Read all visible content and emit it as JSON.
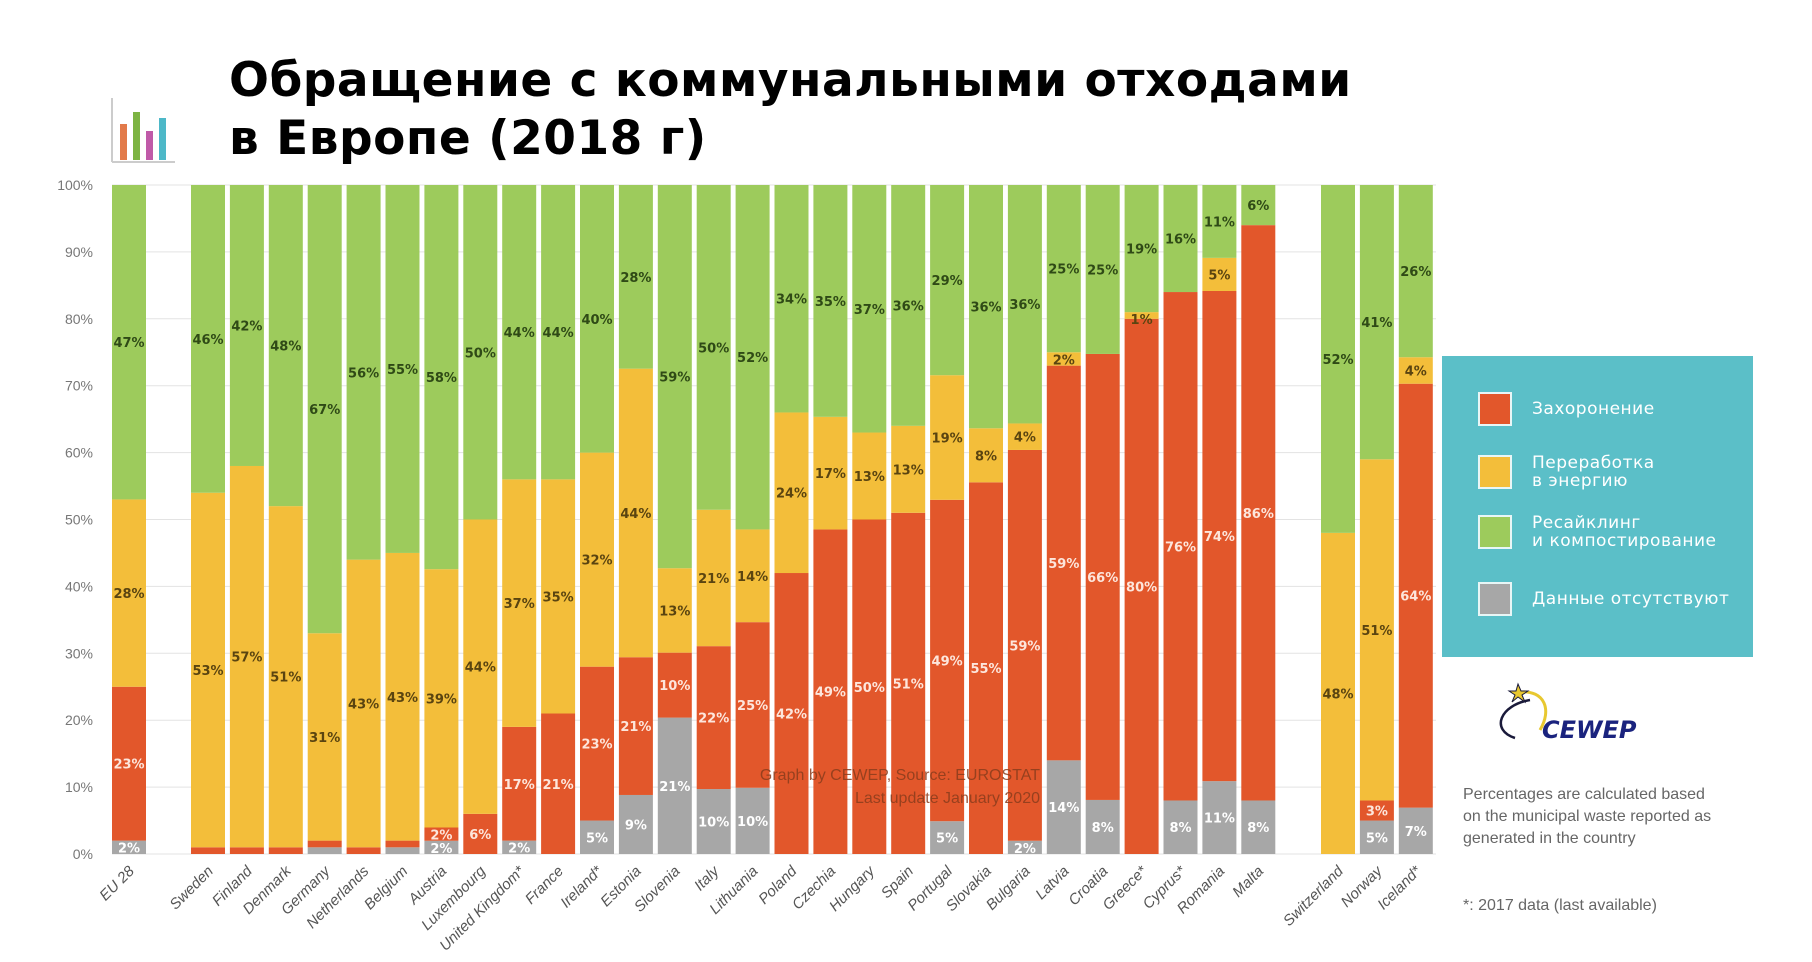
{
  "title_line1": "Обращение с коммунальными отходами",
  "title_line2": "в Европе (2018 г)",
  "credit_line1": "Graph by CEWEP, Source: EUROSTAT",
  "credit_line2": "Last update January 2020",
  "note": "Percentages are calculated based on the municipal waste reported as generated in the country",
  "footnote": "*: 2017 data (last available)",
  "logo_text": "CEWEP",
  "colors": {
    "no_data": "#a7a7a7",
    "landfill": "#e2572b",
    "energy": "#f3be3a",
    "recycling": "#9dcb5c",
    "legend_bg": "#5bbfc8"
  },
  "legend": [
    {
      "label": "Захоронение",
      "color": "#e2572b"
    },
    {
      "label": "Переработка\nв энергию",
      "color": "#f3be3a"
    },
    {
      "label": "Ресайклинг\nи компостирование",
      "color": "#9dcb5c"
    },
    {
      "label": "Данные отсутствуют",
      "color": "#a7a7a7"
    }
  ],
  "chart_data": {
    "type": "bar",
    "stacked": true,
    "ylim": [
      0,
      100
    ],
    "yticks": [
      "0%",
      "10%",
      "20%",
      "30%",
      "40%",
      "50%",
      "60%",
      "70%",
      "80%",
      "90%",
      "100%"
    ],
    "grid": true,
    "legend_position": "right",
    "groups": [
      [
        "EU 28"
      ],
      [
        "Sweden",
        "Finland",
        "Denmark",
        "Germany",
        "Netherlands",
        "Belgium",
        "Austria",
        "Luxembourg",
        "United Kingdom*",
        "France",
        "Ireland*",
        "Estonia",
        "Slovenia",
        "Italy",
        "Lithuania",
        "Poland",
        "Czechia",
        "Hungary",
        "Spain",
        "Portugal",
        "Slovakia",
        "Bulgaria",
        "Latvia",
        "Croatia",
        "Greece*",
        "Cyprus*",
        "Romania",
        "Malta"
      ],
      [
        "Switzerland",
        "Norway",
        "Iceland*"
      ]
    ],
    "categories": [
      "EU 28",
      "Sweden",
      "Finland",
      "Denmark",
      "Germany",
      "Netherlands",
      "Belgium",
      "Austria",
      "Luxembourg",
      "United Kingdom*",
      "France",
      "Ireland*",
      "Estonia",
      "Slovenia",
      "Italy",
      "Lithuania",
      "Poland",
      "Czechia",
      "Hungary",
      "Spain",
      "Portugal",
      "Slovakia",
      "Bulgaria",
      "Latvia",
      "Croatia",
      "Greece*",
      "Cyprus*",
      "Romania",
      "Malta",
      "Switzerland",
      "Norway",
      "Iceland*"
    ],
    "series": [
      {
        "name": "Данные отсутствуют",
        "key": "no_data",
        "values": [
          2,
          0,
          0,
          0,
          1,
          0,
          1,
          2,
          0,
          2,
          0,
          5,
          9,
          21,
          10,
          10,
          0,
          0,
          0,
          0,
          5,
          0,
          2,
          14,
          8,
          0,
          8,
          11,
          8,
          0,
          5,
          7
        ],
        "labels": [
          "2%",
          "",
          "",
          "",
          "",
          "",
          "",
          "2%",
          "",
          "2%",
          "",
          "5%",
          "9%",
          "21%",
          "10%",
          "10%",
          "",
          "",
          "",
          "",
          "5%",
          "",
          "2%",
          "14%",
          "8%",
          "",
          "8%",
          "11%",
          "8%",
          "",
          "5%",
          "7%"
        ]
      },
      {
        "name": "Захоронение",
        "key": "landfill",
        "values": [
          23,
          1,
          1,
          1,
          1,
          1,
          1,
          2,
          6,
          17,
          21,
          23,
          21,
          10,
          22,
          25,
          42,
          49,
          50,
          51,
          49,
          55,
          59,
          59,
          66,
          80,
          76,
          74,
          86,
          0,
          3,
          64
        ],
        "labels": [
          "23%",
          "",
          "",
          "",
          "",
          "",
          "",
          "2%",
          "6%",
          "17%",
          "21%",
          "23%",
          "21%",
          "10%",
          "22%",
          "25%",
          "42%",
          "49%",
          "50%",
          "51%",
          "49%",
          "55%",
          "59%",
          "59%",
          "66%",
          "80%",
          "76%",
          "74%",
          "86%",
          "",
          "3%",
          "64%"
        ]
      },
      {
        "name": "Переработка в энергию",
        "key": "energy",
        "values": [
          28,
          53,
          57,
          51,
          31,
          43,
          43,
          39,
          44,
          37,
          35,
          32,
          44,
          13,
          21,
          14,
          24,
          17,
          13,
          13,
          19,
          8,
          4,
          2,
          0,
          1,
          0,
          5,
          0,
          48,
          51,
          4
        ],
        "labels": [
          "28%",
          "53%",
          "57%",
          "51%",
          "31%",
          "43%",
          "43%",
          "39%",
          "44%",
          "37%",
          "35%",
          "32%",
          "44%",
          "13%",
          "21%",
          "14%",
          "24%",
          "17%",
          "13%",
          "13%",
          "19%",
          "8%",
          "4%",
          "2%",
          "",
          "1%",
          "",
          "5%",
          "",
          "48%",
          "51%",
          "4%"
        ]
      },
      {
        "name": "Ресайклинг и компостирование",
        "key": "recycling",
        "values": [
          47,
          46,
          42,
          48,
          67,
          56,
          55,
          58,
          50,
          44,
          44,
          40,
          28,
          59,
          50,
          52,
          34,
          35,
          37,
          36,
          29,
          36,
          36,
          25,
          25,
          19,
          16,
          11,
          6,
          52,
          41,
          26
        ],
        "labels": [
          "47%",
          "46%",
          "42%",
          "48%",
          "67%",
          "56%",
          "55%",
          "58%",
          "50%",
          "44%",
          "44%",
          "40%",
          "28%",
          "59%",
          "50%",
          "52%",
          "34%",
          "35%",
          "37%",
          "36%",
          "29%",
          "36%",
          "36%",
          "25%",
          "25%",
          "19%",
          "16%",
          "11%",
          "6%",
          "52%",
          "41%",
          "26%"
        ]
      }
    ]
  }
}
